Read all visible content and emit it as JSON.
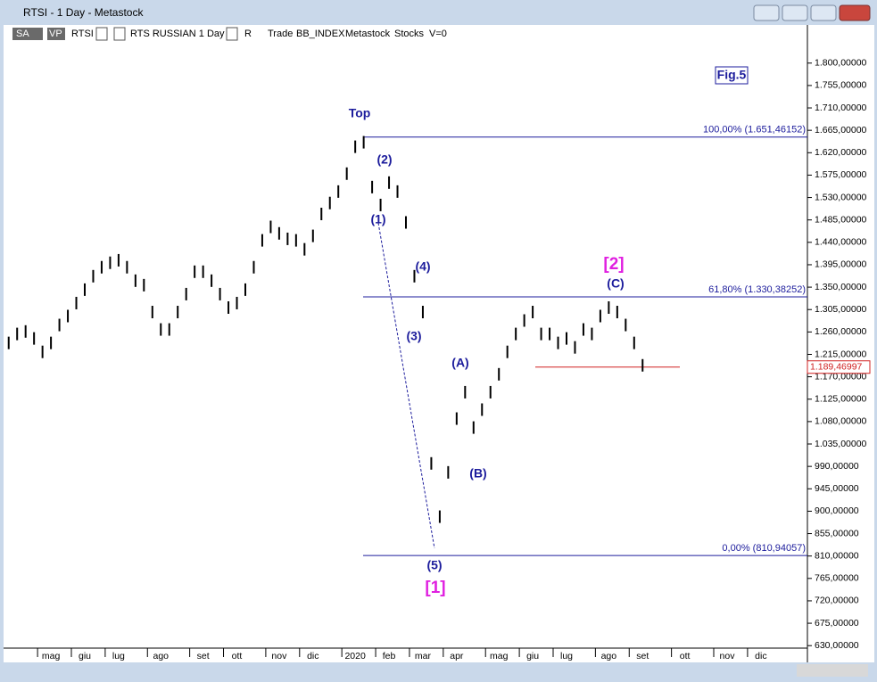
{
  "window": {
    "title": "RTSI - 1 Day - Metastock",
    "toolbar": [
      "SA",
      "VP",
      "RTSI",
      "RTS RUSSIAN  1 Day",
      "R",
      "Trade",
      "BB_INDEX",
      "Metastock",
      "Stocks",
      "V=0"
    ]
  },
  "chart_data": {
    "type": "bar",
    "categories": [
      null,
      null,
      null,
      null,
      null,
      "mag",
      null,
      null,
      null,
      "giu",
      null,
      null,
      null,
      "lug",
      null,
      null,
      null,
      null,
      "ago",
      null,
      null,
      null,
      null,
      "set",
      null,
      null,
      null,
      "ott",
      null,
      null,
      null,
      null,
      "nov",
      null,
      null,
      null,
      "dic",
      null,
      null,
      null,
      null,
      "2020",
      null,
      null,
      null,
      "feb",
      null,
      null,
      null,
      "mar",
      null,
      null,
      null,
      "apr",
      null,
      null,
      null,
      null,
      "mag",
      null,
      null,
      null,
      "giu",
      null,
      null,
      null,
      "lug",
      null,
      null,
      null,
      null,
      "ago",
      null,
      null,
      null,
      "set",
      null,
      null,
      null,
      null,
      "ott",
      null,
      null,
      null,
      null,
      "nov",
      null,
      null,
      null,
      "dic",
      null,
      null,
      null,
      null,
      null
    ],
    "values": [
      1238,
      1256,
      1261,
      1247,
      1220,
      1238,
      1274,
      1292,
      1318,
      1345,
      1372,
      1390,
      1399,
      1404,
      1390,
      1363,
      1354,
      1300,
      1265,
      1265,
      1300,
      1336,
      1381,
      1381,
      1363,
      1336,
      1309,
      1318,
      1345,
      1390,
      1444,
      1471,
      1458,
      1447,
      1444,
      1426,
      1453,
      1497,
      1519,
      1542,
      1578,
      1632,
      1641,
      1551,
      1515,
      1560,
      1542,
      1480,
      1372,
      1300,
      996,
      889,
      978,
      1086,
      1139,
      1068,
      1104,
      1139,
      1175,
      1220,
      1256,
      1283,
      1300,
      1256,
      1256,
      1238,
      1247,
      1229,
      1265,
      1256,
      1292,
      1309,
      1300,
      1274,
      1238,
      1193,
      null,
      null,
      null,
      null,
      null,
      null,
      null,
      null,
      null,
      null,
      null,
      null,
      null,
      null,
      null,
      null,
      null,
      null,
      null
    ],
    "color": "#000000",
    "ylim": [
      625,
      1873
    ],
    "yticks": [
      {
        "value": 630,
        "label": "630,00000"
      },
      {
        "value": 675,
        "label": "675,00000"
      },
      {
        "value": 720,
        "label": "720,00000"
      },
      {
        "value": 765,
        "label": "765,00000"
      },
      {
        "value": 810,
        "label": "810,00000"
      },
      {
        "value": 855,
        "label": "855,00000"
      },
      {
        "value": 900,
        "label": "900,00000"
      },
      {
        "value": 945,
        "label": "945,00000"
      },
      {
        "value": 990,
        "label": "990,00000"
      },
      {
        "value": 1035,
        "label": "1.035,00000"
      },
      {
        "value": 1080,
        "label": "1.080,00000"
      },
      {
        "value": 1125,
        "label": "1.125,00000"
      },
      {
        "value": 1170,
        "label": "1.170,00000"
      },
      {
        "value": 1215,
        "label": "1.215,00000"
      },
      {
        "value": 1260,
        "label": "1.260,00000"
      },
      {
        "value": 1305,
        "label": "1.305,00000"
      },
      {
        "value": 1350,
        "label": "1.350,00000"
      },
      {
        "value": 1395,
        "label": "1.395,00000"
      },
      {
        "value": 1440,
        "label": "1.440,00000"
      },
      {
        "value": 1485,
        "label": "1.485,00000"
      },
      {
        "value": 1530,
        "label": "1.530,00000"
      },
      {
        "value": 1575,
        "label": "1.575,00000"
      },
      {
        "value": 1620,
        "label": "1.620,00000"
      },
      {
        "value": 1665,
        "label": "1.665,00000"
      },
      {
        "value": 1710,
        "label": "1.710,00000"
      },
      {
        "value": 1755,
        "label": "1.755,00000"
      },
      {
        "value": 1800,
        "label": "1.800,00000"
      }
    ],
    "fib_levels": [
      {
        "value": 1651.46152,
        "label": "100,00% (1.651,46152)"
      },
      {
        "value": 1330.38252,
        "label": "61,80% (1.330,38252)"
      },
      {
        "value": 810.94057,
        "label": "0,00% (810,94057)"
      }
    ],
    "last_price": {
      "value": 1189.46997,
      "label": "1.189,46997"
    },
    "annotations": [
      "Top",
      "(1)",
      "(2)",
      "(3)",
      "(4)",
      "(5)",
      "[1]",
      "(A)",
      "(B)",
      "(C)",
      "[2]",
      "Fig.5"
    ]
  }
}
